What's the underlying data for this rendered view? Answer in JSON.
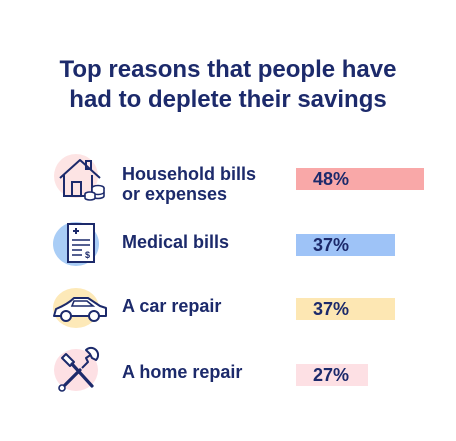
{
  "title_line1": "Top reasons that people have",
  "title_line2": "had to deplete their savings",
  "chart_data": {
    "type": "bar",
    "orientation": "horizontal",
    "categories": [
      "Household bills or expenses",
      "Medical bills",
      "A car repair",
      "A home repair"
    ],
    "values": [
      48,
      37,
      37,
      27
    ],
    "value_labels": [
      "48%",
      "37%",
      "37%",
      "27%"
    ],
    "unit": "%",
    "xlim": [
      0,
      48
    ]
  },
  "rows": [
    {
      "label_line1": "Household bills",
      "label_line2": "or expenses",
      "icon": "house-coins-icon",
      "bar_color": "#f9a8a8",
      "blob_color": "#fde4e4"
    },
    {
      "label_line1": "Medical bills",
      "label_line2": "",
      "icon": "medical-bill-icon",
      "bar_color": "#9ec3f7",
      "blob_color": "#a9cdf6"
    },
    {
      "label_line1": "A car repair",
      "label_line2": "",
      "icon": "car-icon",
      "bar_color": "#fde7b3",
      "blob_color": "#fde9b8"
    },
    {
      "label_line1": "A home repair",
      "label_line2": "",
      "icon": "tools-icon",
      "bar_color": "#fde0e4",
      "blob_color": "#fde0e4"
    }
  ]
}
